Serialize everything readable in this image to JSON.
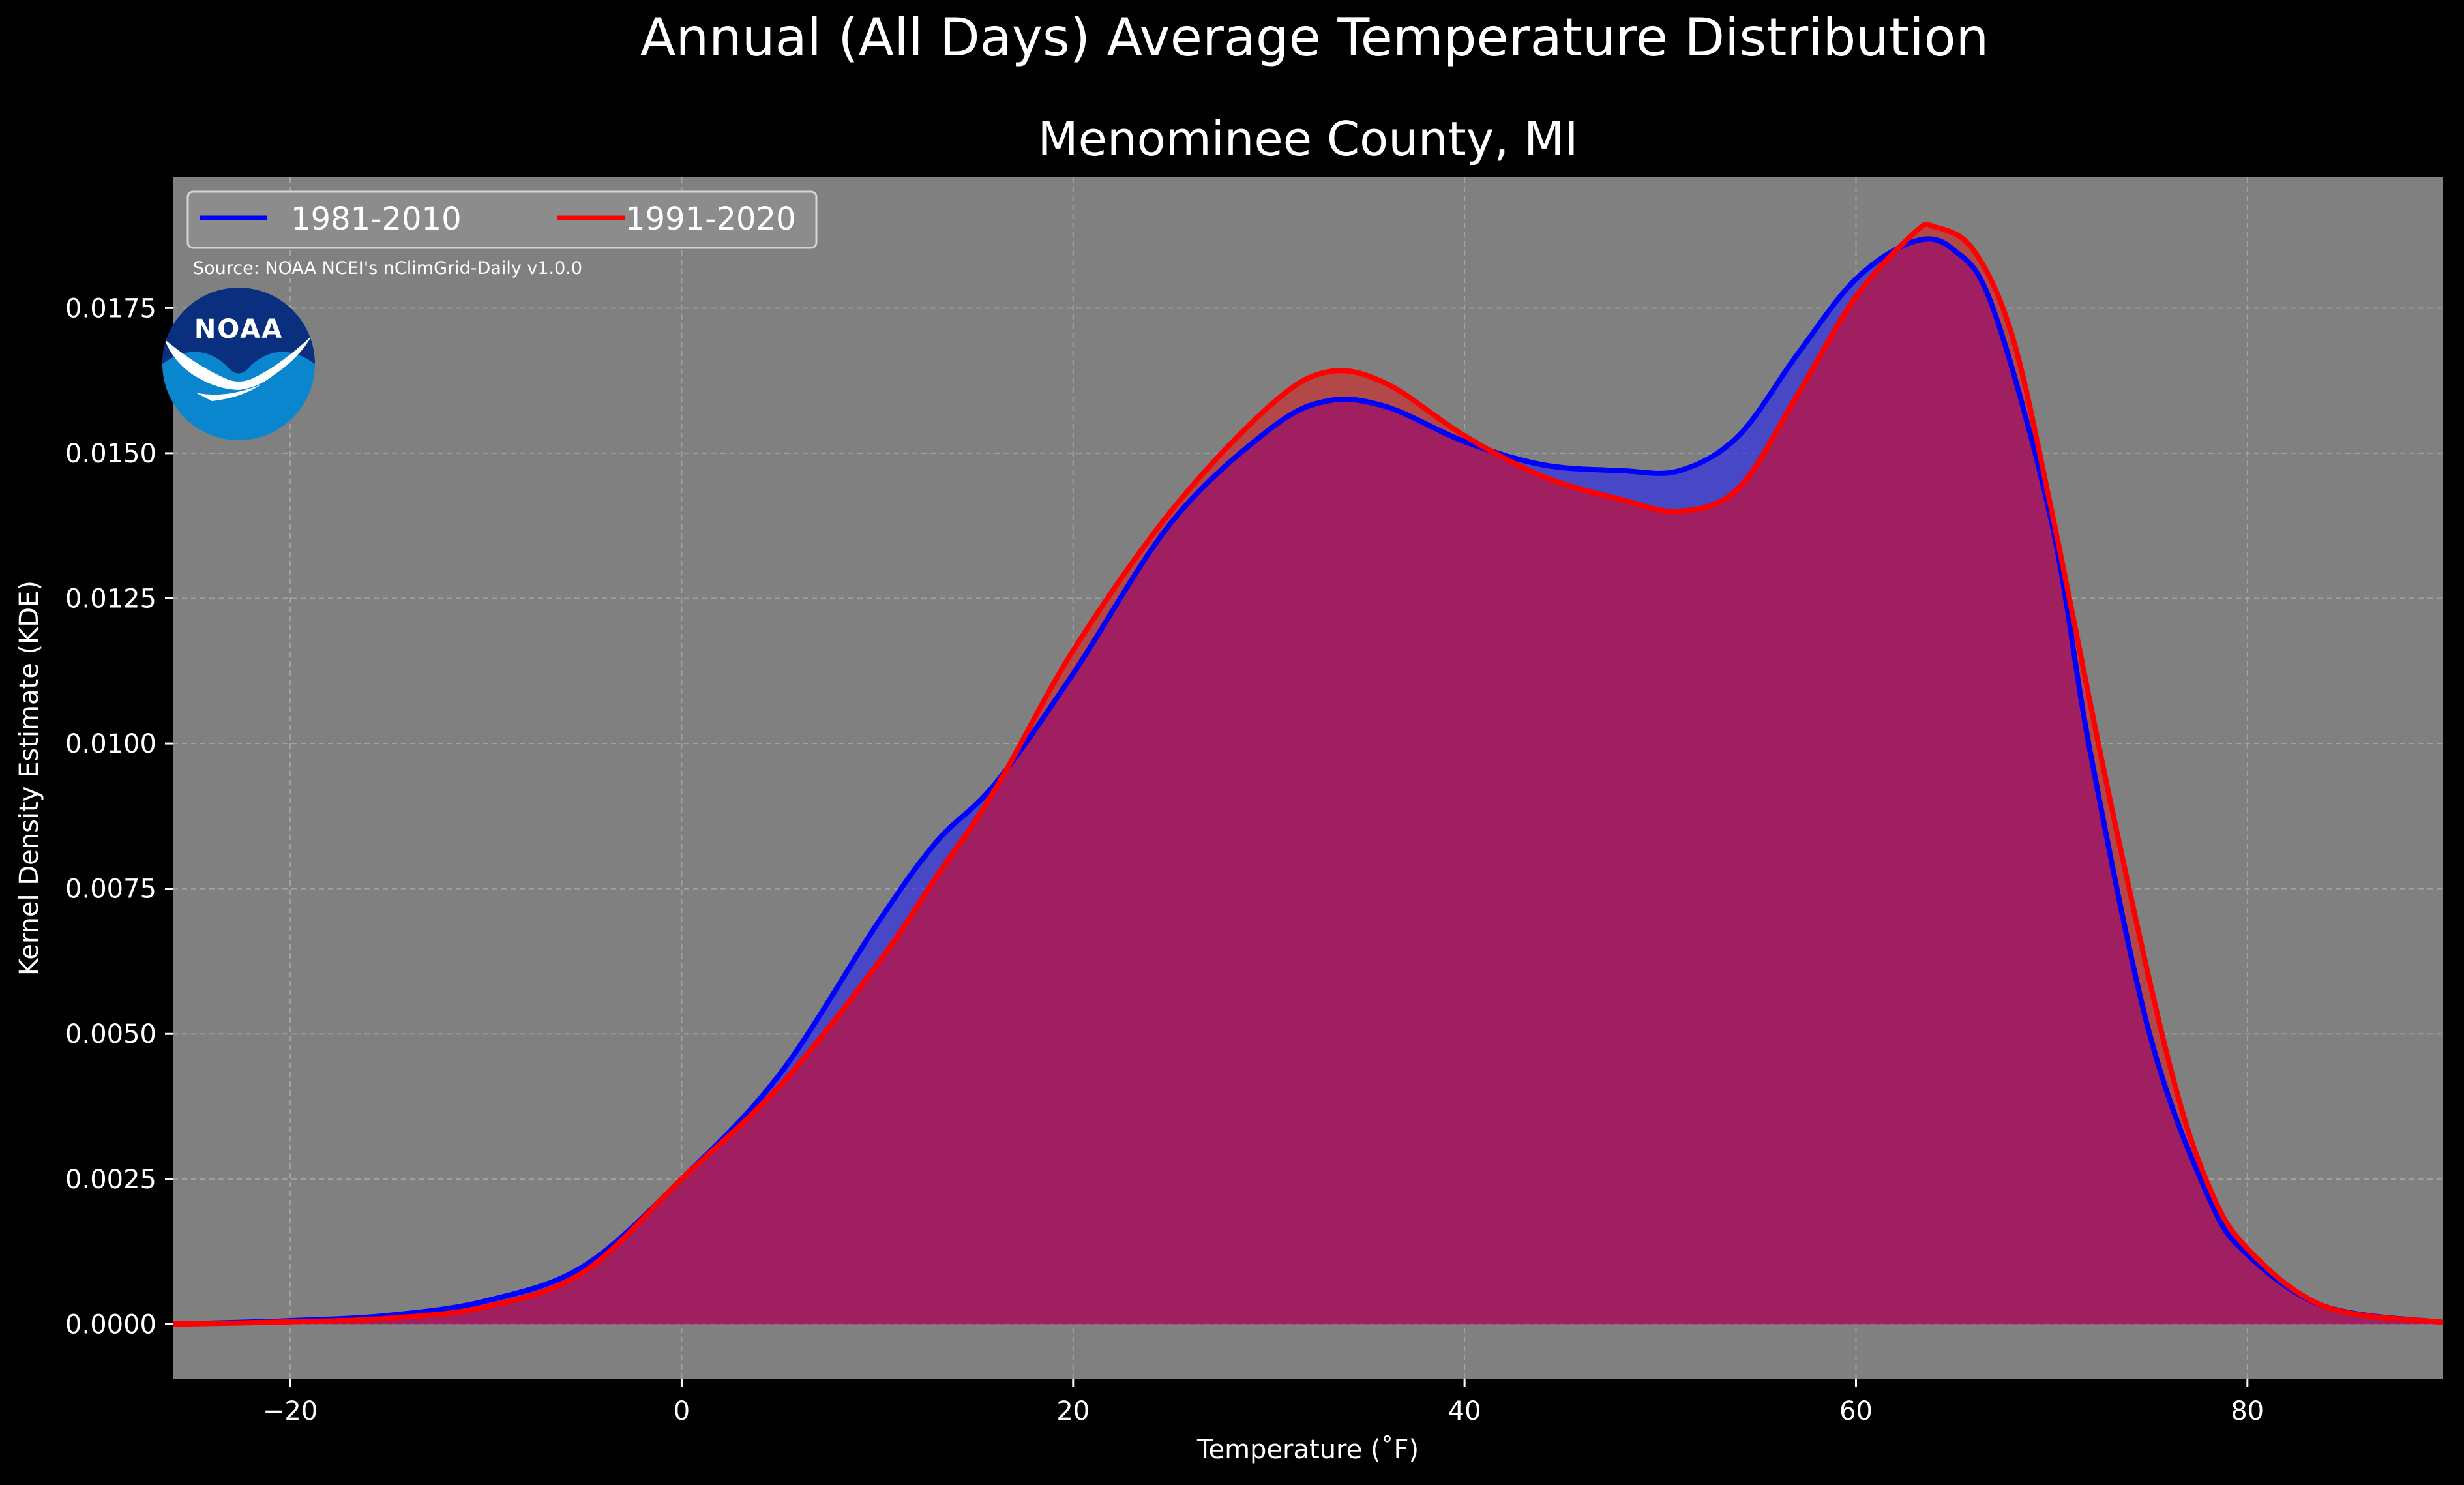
{
  "figure": {
    "suptitle": "Annual (All Days) Average Temperature Distribution",
    "source_note": "Source: NOAA NCEI's nClimGrid-Daily v1.0.0",
    "logo_text": "NOAA",
    "colors": {
      "background": "#000000",
      "plot_background": "#808080",
      "grid": "#b0b0b0",
      "text": "#ffffff",
      "noaa_dark_blue": "#0a2f7f",
      "noaa_light_blue": "#0a86cf"
    }
  },
  "chart_data": {
    "type": "area",
    "title": "Menominee County, MI",
    "xlabel": "Temperature ($^\\circ$F)",
    "xlabel_display": "Temperature (˚F)",
    "ylabel": "Kernel Density Estimate (KDE)",
    "xlim": [
      -26,
      90
    ],
    "ylim": [
      -0.00095,
      0.01975
    ],
    "x_ticks": [
      -20,
      0,
      20,
      40,
      60,
      80
    ],
    "x_tick_labels": [
      "−20",
      "0",
      "20",
      "40",
      "60",
      "80"
    ],
    "y_ticks": [
      0.0,
      0.0025,
      0.005,
      0.0075,
      0.01,
      0.0125,
      0.015,
      0.0175
    ],
    "y_tick_labels": [
      "0.0000",
      "0.0025",
      "0.0050",
      "0.0075",
      "0.0100",
      "0.0125",
      "0.0150",
      "0.0175"
    ],
    "grid": true,
    "legend_placement": "upper-left",
    "series": [
      {
        "name": "1981-2010",
        "line_color": "#0000ff",
        "fill_color": "#1a1aff",
        "fill_opacity": 0.55,
        "points": [
          [
            -26,
            0.0
          ],
          [
            -20,
            6e-05
          ],
          [
            -15,
            0.00015
          ],
          [
            -10,
            0.0004
          ],
          [
            -5,
            0.001
          ],
          [
            0,
            0.0025
          ],
          [
            5,
            0.0043
          ],
          [
            10,
            0.0069
          ],
          [
            13,
            0.0083
          ],
          [
            16,
            0.0093
          ],
          [
            20,
            0.0112
          ],
          [
            25,
            0.0138
          ],
          [
            30,
            0.0154
          ],
          [
            33,
            0.0159
          ],
          [
            36,
            0.0158
          ],
          [
            40,
            0.0152
          ],
          [
            44,
            0.0148
          ],
          [
            48,
            0.0147
          ],
          [
            51,
            0.0147
          ],
          [
            54,
            0.0153
          ],
          [
            57,
            0.0167
          ],
          [
            60,
            0.018
          ],
          [
            63,
            0.01865
          ],
          [
            65,
            0.0185
          ],
          [
            67,
            0.0175
          ],
          [
            70,
            0.0138
          ],
          [
            72,
            0.0098
          ],
          [
            75,
            0.005
          ],
          [
            78,
            0.0022
          ],
          [
            80,
            0.0012
          ],
          [
            84,
            0.0003
          ],
          [
            90,
            3e-05
          ]
        ]
      },
      {
        "name": "1991-2020",
        "line_color": "#ff0000",
        "fill_color": "#dd1a1a",
        "fill_opacity": 0.55,
        "points": [
          [
            -26,
            0.0
          ],
          [
            -20,
            4e-05
          ],
          [
            -15,
            0.0001
          ],
          [
            -10,
            0.0003
          ],
          [
            -5,
            0.0009
          ],
          [
            0,
            0.0025
          ],
          [
            5,
            0.0041
          ],
          [
            10,
            0.0062
          ],
          [
            13,
            0.0077
          ],
          [
            16,
            0.0092
          ],
          [
            20,
            0.0116
          ],
          [
            25,
            0.014
          ],
          [
            30,
            0.0158
          ],
          [
            33,
            0.0164
          ],
          [
            36,
            0.0162
          ],
          [
            40,
            0.0153
          ],
          [
            44,
            0.0146
          ],
          [
            48,
            0.0142
          ],
          [
            51,
            0.014
          ],
          [
            54,
            0.0144
          ],
          [
            57,
            0.016
          ],
          [
            60,
            0.0177
          ],
          [
            63,
            0.0188
          ],
          [
            64,
            0.0189
          ],
          [
            66,
            0.0185
          ],
          [
            68,
            0.017
          ],
          [
            70,
            0.014
          ],
          [
            73,
            0.009
          ],
          [
            76,
            0.0045
          ],
          [
            78,
            0.0024
          ],
          [
            80,
            0.0013
          ],
          [
            84,
            0.0003
          ],
          [
            90,
            3e-05
          ]
        ]
      }
    ],
    "overlap_color": "#a01f60"
  }
}
